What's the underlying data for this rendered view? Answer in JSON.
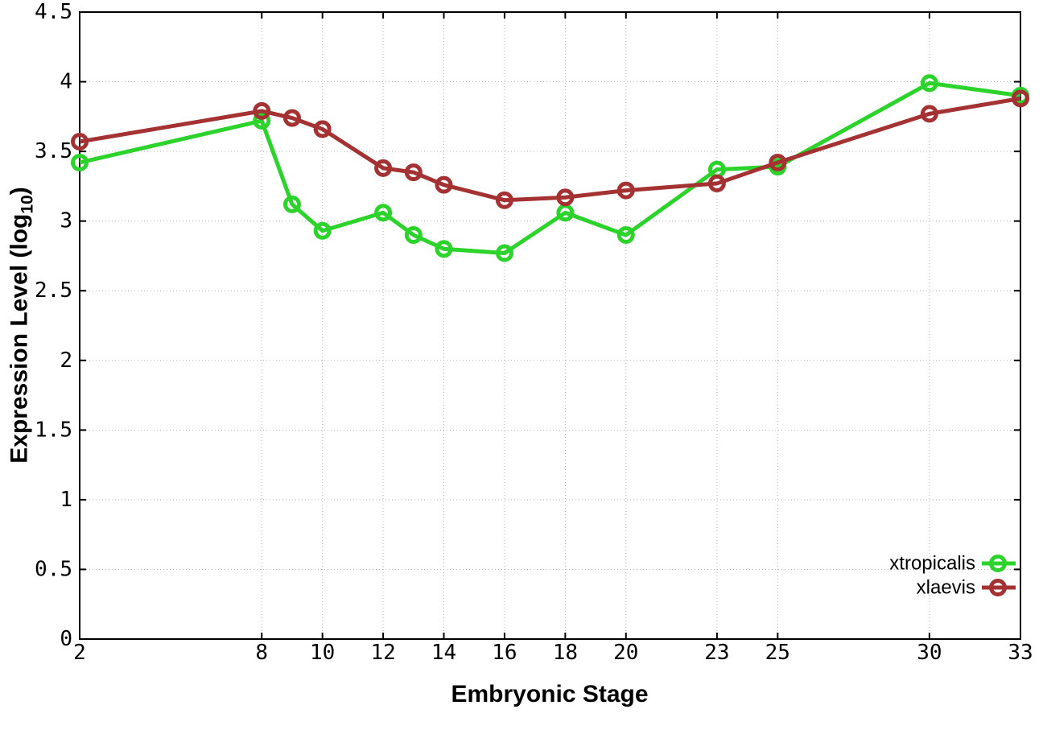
{
  "figure": {
    "background_color": "#ffffff",
    "x_axis_title": "Embryonic Stage",
    "y_axis_title_prefix": "Expression Level (log",
    "y_axis_title_sub": "10",
    "y_axis_title_suffix": ")"
  },
  "chart_data": {
    "type": "line",
    "title": "",
    "xlabel": "Embryonic Stage",
    "ylabel": "Expression Level (log10)",
    "x": [
      2,
      8,
      9,
      10,
      12,
      13,
      14,
      16,
      18,
      20,
      23,
      25,
      30,
      33
    ],
    "series": [
      {
        "name": "xtropicalis",
        "color": "#2bd32b",
        "values": [
          3.42,
          3.72,
          3.12,
          2.93,
          3.06,
          2.9,
          2.8,
          2.77,
          3.06,
          2.9,
          3.37,
          3.39,
          3.99,
          3.9
        ]
      },
      {
        "name": "xlaevis",
        "color": "#a43232",
        "values": [
          3.57,
          3.79,
          3.74,
          3.66,
          3.38,
          3.35,
          3.26,
          3.15,
          3.17,
          3.22,
          3.27,
          3.42,
          3.77,
          3.88
        ]
      }
    ],
    "xlim": [
      2,
      33
    ],
    "ylim": [
      0,
      4.5
    ],
    "xticks": [
      2,
      8,
      10,
      12,
      14,
      16,
      18,
      20,
      23,
      25,
      30,
      33
    ],
    "xtick_labels": [
      "2",
      "8",
      "10",
      "12",
      "14",
      "16",
      "18",
      "20",
      "23",
      "25",
      "30",
      "33"
    ],
    "yticks": [
      0,
      0.5,
      1,
      1.5,
      2,
      2.5,
      3,
      3.5,
      4,
      4.5
    ],
    "ytick_labels": [
      "0",
      "0.5",
      "1",
      "1.5",
      "2",
      "2.5",
      "3",
      "3.5",
      "4",
      "4.5"
    ],
    "grid": true,
    "grid_style": "dotted",
    "grid_color": "#b3b3b3",
    "axis_color": "#000000",
    "marker": "open-circle",
    "legend_position": "inside-bottom-right",
    "legend_entries": [
      "xtropicalis",
      "xlaevis"
    ]
  }
}
